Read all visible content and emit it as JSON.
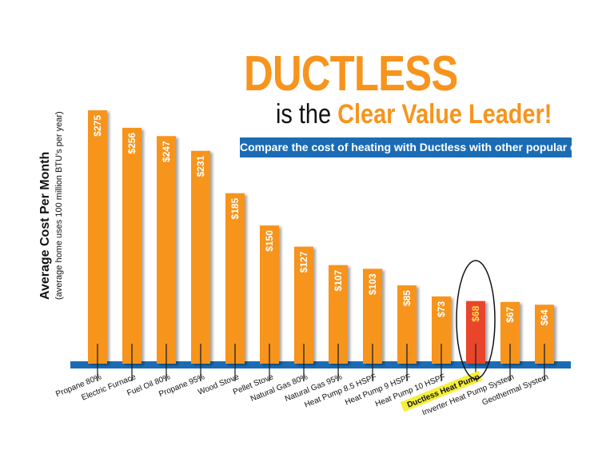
{
  "title": {
    "main": "DUCTLESS",
    "sub_prefix": "is the ",
    "sub_highlight": "Clear Value Leader!"
  },
  "banner": "Compare the cost of heating with Ductless with other popular options:",
  "colors": {
    "bar": "#f7941d",
    "highlight_bar": "#e8452c",
    "axis": "#1b6cb5",
    "label_highlight": "#f5ef3a"
  },
  "chart_data": {
    "type": "bar",
    "ylabel": "Average Cost Per Month",
    "ylabel_note": "(average home uses 100 million BTU's per year)",
    "categories": [
      "Propane 80%",
      "Electric Furnace",
      "Fuel Oil 80%",
      "Propane 95%",
      "Wood Stove",
      "Pellet Stove",
      "Natural Gas 80%",
      "Natural Gas 95%",
      "Heat Pump 8.5 HSPF",
      "Heat Pump 9 HSPF",
      "Heat Pump 10 HSPF",
      "Ductless Heat Pump",
      "Inverter Heat Pump System",
      "Geothermal System"
    ],
    "values": [
      275,
      256,
      247,
      231,
      185,
      150,
      127,
      107,
      103,
      85,
      73,
      68,
      67,
      64
    ],
    "value_labels": [
      "$275",
      "$256",
      "$247",
      "$231",
      "$185",
      "$150",
      "$127",
      "$107",
      "$103",
      "$85",
      "$73",
      "$68",
      "$67",
      "$64"
    ],
    "highlight": "Ductless Heat Pump",
    "ylim": [
      0,
      275
    ],
    "grid": false
  }
}
